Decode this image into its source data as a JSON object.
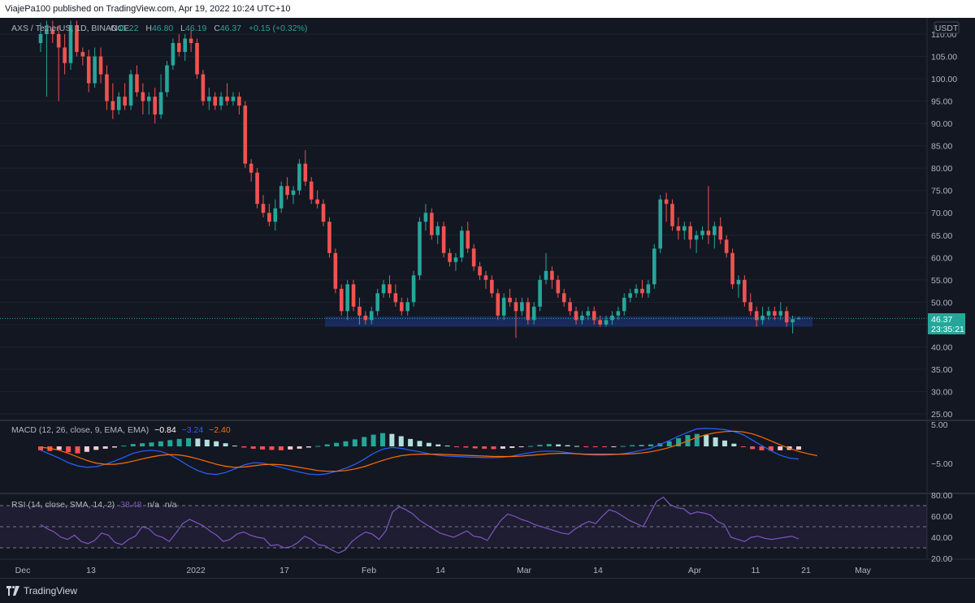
{
  "header": {
    "published_text": "ViajePa100 published on TradingView.com, Apr 19, 2022 10:24 UTC+10"
  },
  "legend": {
    "symbol": "AXS / TetherUS, 1D, BINANCE",
    "open_label": "O",
    "open": "46.22",
    "high_label": "H",
    "high": "46.80",
    "low_label": "L",
    "low": "46.19",
    "close_label": "C",
    "close": "46.37",
    "change": "+0.15 (+0.32%)"
  },
  "price_axis": {
    "currency_badge": "USDT",
    "ticks": [
      "110.00",
      "105.00",
      "100.00",
      "95.00",
      "90.00",
      "85.00",
      "80.00",
      "75.00",
      "70.00",
      "65.00",
      "60.00",
      "55.00",
      "50.00",
      "45.00",
      "40.00",
      "35.00",
      "30.00",
      "25.00"
    ],
    "last_price": "46.37",
    "countdown": "23:35:21"
  },
  "time_axis": {
    "labels": [
      "Dec",
      "13",
      "2022",
      "17",
      "Feb",
      "14",
      "Mar",
      "14",
      "Apr",
      "11",
      "21",
      "May"
    ]
  },
  "macd_panel": {
    "label": "MACD (12, 26, close, 9, EMA, EMA)",
    "v_hist": "−0.84",
    "v_macd": "−3.24",
    "v_signal": "−2.40",
    "ticks": [
      "5.00",
      "−5.00"
    ]
  },
  "rsi_panel": {
    "label": "RSI (14, close, SMA, 14, 2)",
    "v_rsi": "38.48",
    "v_na1": "n/a",
    "v_na2": "n/a",
    "ticks": [
      "80.00",
      "60.00",
      "40.00",
      "20.00"
    ]
  },
  "footer": {
    "brand": "TradingView"
  },
  "colors": {
    "background": "#131722",
    "up": "#26a69a",
    "down": "#ef5350",
    "macd_line": "#2962ff",
    "signal_line": "#ff6d00",
    "rsi_line": "#7e57c2",
    "support_zone": "#1e3a8a"
  },
  "chart_data": {
    "type": "candlestick",
    "title": "AXS / TetherUS, 1D, BINANCE",
    "ylim": [
      23,
      113
    ],
    "support_zone": [
      44.5,
      46.8
    ],
    "last_close": 46.37,
    "candles_ohlc": [
      [
        108.0,
        112.5,
        106.0,
        110.0
      ],
      [
        110.0,
        113.0,
        96.0,
        111.0
      ],
      [
        111.0,
        113.0,
        108.0,
        110.0
      ],
      [
        110.0,
        112.0,
        95.0,
        107.0
      ],
      [
        107.0,
        110.0,
        101.0,
        103.5
      ],
      [
        103.5,
        113.0,
        102.0,
        112.0
      ],
      [
        112.0,
        113.0,
        105.0,
        106.0
      ],
      [
        106.0,
        107.0,
        103.0,
        105.0
      ],
      [
        105.0,
        106.5,
        97.0,
        99.0
      ],
      [
        99.0,
        107.0,
        98.0,
        105.0
      ],
      [
        105.0,
        107.0,
        99.0,
        101.0
      ],
      [
        101.0,
        103.0,
        93.0,
        95.0
      ],
      [
        95.0,
        99.0,
        91.0,
        93.0
      ],
      [
        93.0,
        97.0,
        92.0,
        96.0
      ],
      [
        96.0,
        99.0,
        93.0,
        94.0
      ],
      [
        94.0,
        102.0,
        93.0,
        101.0
      ],
      [
        101.0,
        103.0,
        96.0,
        97.0
      ],
      [
        97.0,
        99.0,
        92.0,
        95.0
      ],
      [
        95.0,
        97.0,
        92.0,
        96.0
      ],
      [
        96.0,
        98.0,
        90.0,
        92.0
      ],
      [
        92.0,
        101.0,
        91.0,
        97.0
      ],
      [
        97.0,
        104.0,
        96.0,
        103.0
      ],
      [
        103.0,
        109.0,
        102.0,
        108.0
      ],
      [
        108.0,
        110.0,
        105.0,
        106.0
      ],
      [
        106.0,
        110.0,
        104.0,
        109.0
      ],
      [
        109.0,
        111.0,
        106.0,
        108.0
      ],
      [
        108.0,
        109.0,
        100.0,
        101.0
      ],
      [
        101.0,
        102.0,
        94.0,
        95.0
      ],
      [
        95.0,
        98.0,
        93.0,
        96.0
      ],
      [
        96.0,
        97.0,
        93.0,
        94.0
      ],
      [
        94.0,
        97.0,
        93.0,
        96.0
      ],
      [
        96.0,
        99.0,
        94.0,
        95.0
      ],
      [
        95.0,
        97.0,
        94.0,
        96.0
      ],
      [
        96.0,
        97.0,
        92.0,
        94.0
      ],
      [
        94.0,
        95.0,
        80.0,
        81.0
      ],
      [
        81.0,
        82.0,
        77.0,
        79.0
      ],
      [
        79.0,
        80.0,
        71.0,
        72.0
      ],
      [
        72.0,
        74.0,
        69.0,
        70.0
      ],
      [
        70.0,
        72.0,
        67.0,
        68.0
      ],
      [
        68.0,
        73.0,
        66.0,
        71.0
      ],
      [
        71.0,
        77.0,
        70.0,
        76.0
      ],
      [
        76.0,
        78.0,
        73.0,
        74.0
      ],
      [
        74.0,
        76.0,
        72.0,
        75.0
      ],
      [
        75.0,
        82.0,
        74.0,
        81.0
      ],
      [
        81.0,
        84.0,
        76.0,
        77.0
      ],
      [
        77.0,
        78.0,
        72.0,
        73.0
      ],
      [
        73.0,
        75.0,
        71.0,
        72.0
      ],
      [
        72.0,
        73.0,
        67.0,
        68.0
      ],
      [
        68.0,
        69.0,
        60.0,
        61.0
      ],
      [
        61.0,
        62.0,
        52.0,
        53.0
      ],
      [
        53.0,
        54.0,
        47.0,
        48.0
      ],
      [
        48.0,
        55.0,
        46.0,
        54.0
      ],
      [
        54.0,
        55.0,
        48.0,
        49.0
      ],
      [
        49.0,
        51.0,
        45.0,
        47.0
      ],
      [
        47.0,
        48.0,
        45.0,
        46.0
      ],
      [
        46.0,
        49.0,
        45.0,
        48.0
      ],
      [
        48.0,
        53.0,
        47.0,
        52.0
      ],
      [
        52.0,
        55.0,
        51.0,
        54.0
      ],
      [
        54.0,
        56.0,
        51.0,
        52.0
      ],
      [
        52.0,
        54.0,
        49.0,
        50.0
      ],
      [
        50.0,
        51.0,
        47.0,
        48.0
      ],
      [
        48.0,
        51.0,
        47.0,
        50.0
      ],
      [
        50.0,
        57.0,
        49.0,
        56.0
      ],
      [
        56.0,
        69.0,
        55.0,
        68.0
      ],
      [
        68.0,
        72.0,
        66.0,
        70.0
      ],
      [
        70.0,
        71.0,
        64.0,
        65.0
      ],
      [
        65.0,
        68.0,
        63.0,
        67.0
      ],
      [
        67.0,
        68.0,
        60.0,
        61.0
      ],
      [
        61.0,
        62.0,
        58.0,
        59.0
      ],
      [
        59.0,
        61.0,
        57.0,
        60.0
      ],
      [
        60.0,
        67.0,
        59.0,
        66.0
      ],
      [
        66.0,
        68.0,
        61.0,
        62.0
      ],
      [
        62.0,
        63.0,
        57.0,
        58.0
      ],
      [
        58.0,
        59.0,
        55.0,
        56.0
      ],
      [
        56.0,
        57.0,
        53.0,
        55.0
      ],
      [
        55.0,
        56.0,
        51.0,
        52.0
      ],
      [
        52.0,
        53.0,
        46.0,
        47.0
      ],
      [
        47.0,
        52.0,
        46.0,
        51.0
      ],
      [
        51.0,
        53.0,
        49.0,
        50.0
      ],
      [
        50.0,
        51.0,
        42.0,
        48.0
      ],
      [
        48.0,
        51.0,
        47.0,
        50.0
      ],
      [
        50.0,
        51.0,
        45.0,
        46.0
      ],
      [
        46.0,
        50.0,
        45.0,
        49.0
      ],
      [
        49.0,
        56.0,
        48.0,
        55.0
      ],
      [
        55.0,
        61.0,
        54.0,
        57.0
      ],
      [
        57.0,
        58.0,
        53.0,
        55.0
      ],
      [
        55.0,
        56.0,
        51.0,
        52.0
      ],
      [
        52.0,
        53.0,
        49.0,
        50.0
      ],
      [
        50.0,
        51.0,
        47.0,
        48.0
      ],
      [
        48.0,
        49.0,
        45.0,
        46.0
      ],
      [
        46.0,
        48.0,
        45.0,
        47.0
      ],
      [
        47.0,
        49.0,
        46.0,
        48.0
      ],
      [
        48.0,
        49.0,
        45.0,
        46.0
      ],
      [
        46.0,
        47.0,
        44.5,
        45.0
      ],
      [
        45.0,
        47.0,
        44.5,
        46.0
      ],
      [
        46.0,
        48.0,
        45.0,
        47.0
      ],
      [
        47.0,
        49.0,
        46.0,
        48.0
      ],
      [
        48.0,
        52.0,
        47.0,
        51.0
      ],
      [
        51.0,
        53.0,
        50.0,
        52.0
      ],
      [
        52.0,
        54.0,
        51.0,
        53.0
      ],
      [
        53.0,
        55.0,
        51.0,
        52.0
      ],
      [
        52.0,
        55.0,
        51.0,
        54.0
      ],
      [
        54.0,
        63.0,
        53.0,
        62.0
      ],
      [
        62.0,
        74.0,
        61.0,
        73.0
      ],
      [
        73.0,
        74.5,
        68.0,
        72.0
      ],
      [
        72.0,
        73.0,
        66.0,
        67.0
      ],
      [
        67.0,
        69.0,
        64.0,
        66.0
      ],
      [
        66.0,
        68.0,
        64.0,
        67.0
      ],
      [
        67.0,
        68.0,
        62.0,
        64.0
      ],
      [
        64.0,
        66.0,
        61.0,
        65.0
      ],
      [
        65.0,
        67.0,
        64.0,
        66.0
      ],
      [
        66.0,
        76.0,
        63.0,
        65.0
      ],
      [
        65.0,
        68.0,
        62.0,
        67.0
      ],
      [
        67.0,
        69.0,
        63.0,
        64.0
      ],
      [
        64.0,
        65.0,
        60.0,
        61.0
      ],
      [
        61.0,
        62.0,
        53.0,
        54.0
      ],
      [
        54.0,
        56.0,
        51.0,
        55.0
      ],
      [
        55.0,
        56.0,
        49.0,
        50.0
      ],
      [
        50.0,
        52.0,
        47.0,
        48.0
      ],
      [
        48.0,
        49.0,
        44.5,
        46.0
      ],
      [
        46.0,
        49.0,
        45.0,
        47.0
      ],
      [
        47.0,
        49.0,
        46.0,
        48.0
      ],
      [
        48.0,
        49.0,
        46.0,
        47.0
      ],
      [
        47.0,
        50.0,
        46.0,
        48.0
      ],
      [
        48.0,
        49.0,
        44.5,
        45.5
      ],
      [
        45.5,
        47.0,
        43.0,
        46.2
      ],
      [
        46.22,
        46.8,
        46.19,
        46.37
      ]
    ],
    "macd_hist": [
      -1.0,
      -1.2,
      -0.9,
      -1.5,
      -1.8,
      -1.4,
      -0.9,
      -0.6,
      -0.3,
      0.2,
      0.6,
      0.8,
      1.0,
      1.3,
      1.6,
      1.9,
      2.1,
      2.0,
      1.7,
      1.3,
      0.8,
      0.2,
      -0.3,
      -0.6,
      -0.8,
      -0.9,
      -1.0,
      -0.8,
      -0.6,
      -0.3,
      0.1,
      0.5,
      0.9,
      1.3,
      1.8,
      2.4,
      3.0,
      3.4,
      3.2,
      2.6,
      1.9,
      1.4,
      0.9,
      0.5,
      0.2,
      -0.1,
      -0.3,
      -0.5,
      -0.6,
      -0.7,
      -0.6,
      -0.4,
      -0.2,
      0.1,
      0.4,
      0.6,
      0.5,
      0.3,
      0.1,
      -0.1,
      -0.2,
      -0.2,
      -0.1,
      0.1,
      0.3,
      0.4,
      0.5,
      0.8,
      1.3,
      2.1,
      2.9,
      3.2,
      2.9,
      2.3,
      1.5,
      0.7,
      -0.1,
      -0.7,
      -1.0,
      -1.1,
      -1.0,
      -0.9,
      -0.84
    ],
    "macd_line": [
      -1.0,
      -2.0,
      -3.0,
      -4.2,
      -5.0,
      -5.4,
      -5.2,
      -4.6,
      -3.8,
      -2.8,
      -1.8,
      -1.2,
      -1.0,
      -1.3,
      -2.2,
      -3.5,
      -5.0,
      -6.2,
      -7.0,
      -7.2,
      -6.7,
      -5.8,
      -4.8,
      -4.2,
      -4.3,
      -4.8,
      -5.4,
      -6.0,
      -6.6,
      -7.1,
      -7.3,
      -7.0,
      -6.4,
      -5.6,
      -4.6,
      -3.3,
      -1.8,
      -0.7,
      -0.3,
      -0.5,
      -1.0,
      -1.4,
      -1.9,
      -2.3,
      -2.5,
      -2.6,
      -2.7,
      -2.8,
      -2.9,
      -2.9,
      -2.8,
      -2.5,
      -2.0,
      -1.6,
      -1.3,
      -1.2,
      -1.3,
      -1.6,
      -1.9,
      -2.1,
      -2.2,
      -2.2,
      -2.1,
      -1.9,
      -1.5,
      -1.0,
      -0.5,
      0.5,
      1.5,
      2.6,
      3.6,
      4.5,
      4.6,
      4.5,
      4.3,
      3.8,
      3.0,
      1.6,
      0.2,
      -1.1,
      -2.3,
      -3.0,
      -3.24
    ],
    "signal_line": [
      -0.2,
      -0.5,
      -1.0,
      -1.8,
      -2.7,
      -3.6,
      -4.3,
      -4.6,
      -4.6,
      -4.3,
      -3.8,
      -3.2,
      -2.7,
      -2.3,
      -2.1,
      -2.2,
      -2.6,
      -3.2,
      -3.9,
      -4.6,
      -5.1,
      -5.4,
      -5.3,
      -5.0,
      -4.7,
      -4.6,
      -4.7,
      -5.0,
      -5.4,
      -5.8,
      -6.2,
      -6.4,
      -6.4,
      -6.2,
      -5.8,
      -5.2,
      -4.4,
      -3.6,
      -2.9,
      -2.4,
      -2.1,
      -2.0,
      -2.0,
      -2.0,
      -2.1,
      -2.2,
      -2.3,
      -2.4,
      -2.5,
      -2.6,
      -2.6,
      -2.6,
      -2.5,
      -2.3,
      -2.1,
      -1.9,
      -1.8,
      -1.8,
      -1.9,
      -2.0,
      -2.0,
      -2.0,
      -2.0,
      -2.0,
      -1.9,
      -1.7,
      -1.4,
      -0.9,
      -0.3,
      0.5,
      1.4,
      2.3,
      3.0,
      3.5,
      3.8,
      3.9,
      3.7,
      3.2,
      2.4,
      1.4,
      0.4,
      -0.5,
      -1.3,
      -1.9,
      -2.4
    ],
    "rsi": [
      52,
      48,
      45,
      40,
      38,
      42,
      36,
      34,
      37,
      44,
      42,
      35,
      33,
      38,
      41,
      50,
      48,
      42,
      40,
      36,
      44,
      53,
      57,
      54,
      51,
      46,
      42,
      36,
      38,
      43,
      45,
      42,
      40,
      39,
      32,
      33,
      30,
      31,
      35,
      41,
      38,
      33,
      32,
      28,
      25,
      28,
      36,
      41,
      45,
      43,
      38,
      46,
      64,
      69,
      66,
      62,
      56,
      52,
      48,
      44,
      42,
      40,
      43,
      46,
      41,
      40,
      37,
      47,
      56,
      62,
      60,
      57,
      55,
      52,
      50,
      48,
      46,
      44,
      43,
      48,
      52,
      55,
      53,
      60,
      66,
      64,
      60,
      56,
      53,
      50,
      62,
      74,
      78,
      71,
      68,
      67,
      62,
      64,
      63,
      61,
      55,
      52,
      40,
      38,
      36,
      40,
      41,
      39,
      38,
      39,
      40,
      41,
      38.48
    ],
    "rsi_bands": [
      70,
      50,
      30
    ]
  }
}
